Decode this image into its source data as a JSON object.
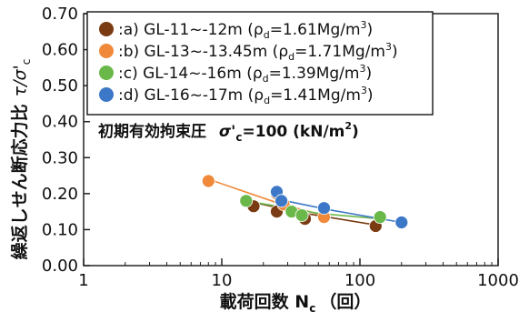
{
  "chart_data": {
    "type": "scatter",
    "xscale": "log",
    "xlim": [
      1,
      1000
    ],
    "ylim": [
      0.0,
      0.7
    ],
    "xlabel": "載荷回数 N",
    "xlabel_sub": "c",
    "xlabel_unit": "（回）",
    "ylabel": "繰返しせん断応力比",
    "ylabel_symbol": "τ/σ'",
    "ylabel_symbol_sub": "c",
    "xticks": [
      1,
      10,
      100,
      1000
    ],
    "xtick_labels": [
      "1",
      "10",
      "100",
      "1000"
    ],
    "yticks": [
      0.0,
      0.1,
      0.2,
      0.3,
      0.4,
      0.5,
      0.6,
      0.7
    ],
    "ytick_labels": [
      "0.00",
      "0.10",
      "0.20",
      "0.30",
      "0.40",
      "0.50",
      "0.60",
      "0.70"
    ],
    "annotation": {
      "prefix": "初期有効拘束圧",
      "sigma": "σ'",
      "sub": "c",
      "value": "=100 (kN/m",
      "sup": "2",
      "suffix": ")"
    },
    "legend_placement": "top-left",
    "series": [
      {
        "label_prefix": ":a) GL-11~-12m",
        "rho": "(ρ",
        "rho_sub": "d",
        "rho_value": "=1.61Mg/m",
        "rho_sup": "3",
        "rho_close": ")",
        "color": "#7a3b12",
        "points": [
          [
            17,
            0.165
          ],
          [
            25,
            0.15
          ],
          [
            40,
            0.13
          ],
          [
            130,
            0.11
          ]
        ],
        "fit": [
          [
            15,
            0.18
          ],
          [
            40,
            0.145
          ],
          [
            130,
            0.113
          ]
        ]
      },
      {
        "label_prefix": ":b) GL-13~-13.45m",
        "rho": "(ρ",
        "rho_sub": "d",
        "rho_value": "=1.71Mg/m",
        "rho_sup": "3",
        "rho_close": ")",
        "color": "#f08a3a",
        "points": [
          [
            8,
            0.235
          ],
          [
            25,
            0.2
          ],
          [
            28,
            0.17
          ],
          [
            55,
            0.135
          ]
        ],
        "fit": [
          [
            8,
            0.24
          ],
          [
            25,
            0.175
          ],
          [
            60,
            0.135
          ]
        ]
      },
      {
        "label_prefix": ":c) GL-14~-16m",
        "rho": "(ρ",
        "rho_sub": "d",
        "rho_value": "=1.39Mg/m",
        "rho_sup": "3",
        "rho_close": ")",
        "color": "#6ab84a",
        "points": [
          [
            15,
            0.18
          ],
          [
            32,
            0.15
          ],
          [
            38,
            0.14
          ],
          [
            140,
            0.135
          ]
        ],
        "fit": [
          [
            15,
            0.18
          ],
          [
            50,
            0.145
          ],
          [
            140,
            0.13
          ]
        ]
      },
      {
        "label_prefix": ":d) GL-16~-17m",
        "rho": "(ρ",
        "rho_sub": "d",
        "rho_value": "=1.41Mg/m",
        "rho_sup": "3",
        "rho_close": ")",
        "color": "#3d78c8",
        "points": [
          [
            25,
            0.205
          ],
          [
            27,
            0.18
          ],
          [
            55,
            0.16
          ],
          [
            200,
            0.12
          ]
        ],
        "fit": [
          [
            25,
            0.185
          ],
          [
            60,
            0.155
          ],
          [
            200,
            0.12
          ]
        ]
      }
    ]
  }
}
